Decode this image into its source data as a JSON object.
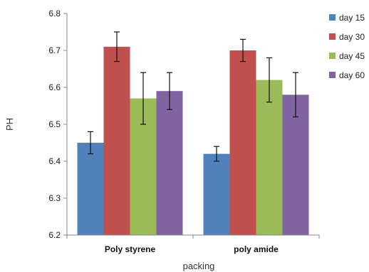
{
  "chart_data": {
    "type": "bar",
    "xlabel": "packing",
    "ylabel": "PH",
    "ylim": [
      6.2,
      6.8
    ],
    "yticks": [
      "6.2",
      "6.3",
      "6.4",
      "6.5",
      "6.6",
      "6.7",
      "6.8"
    ],
    "categories": [
      "Poly styrene",
      "poly amide"
    ],
    "legend_position": "top-right",
    "grid": false,
    "series": [
      {
        "name": "day 15",
        "color": "#4f81bd",
        "values": [
          6.45,
          6.42
        ],
        "errors": [
          0.03,
          0.02
        ]
      },
      {
        "name": "day 30",
        "color": "#c0504d",
        "values": [
          6.71,
          6.7
        ],
        "errors": [
          0.04,
          0.03
        ]
      },
      {
        "name": "day 45",
        "color": "#9bbb59",
        "values": [
          6.57,
          6.62
        ],
        "errors": [
          0.07,
          0.06
        ]
      },
      {
        "name": "day 60",
        "color": "#8064a2",
        "values": [
          6.59,
          6.58
        ],
        "errors": [
          0.05,
          0.06
        ]
      }
    ]
  }
}
